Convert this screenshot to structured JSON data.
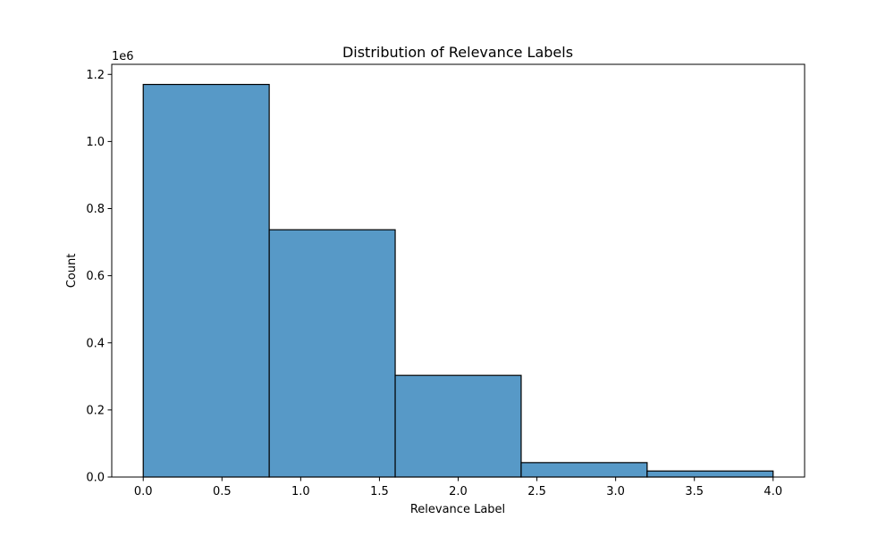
{
  "chart_data": {
    "type": "bar",
    "title": "Distribution of Relevance Labels",
    "xlabel": "Relevance Label",
    "ylabel": "Count",
    "y_multiplier_label": "1e6",
    "bins": [
      {
        "x0": 0.0,
        "x1": 0.8,
        "count": 1170000
      },
      {
        "x0": 0.8,
        "x1": 1.6,
        "count": 737000
      },
      {
        "x0": 1.6,
        "x1": 2.4,
        "count": 303000
      },
      {
        "x0": 2.4,
        "x1": 3.2,
        "count": 43000
      },
      {
        "x0": 3.2,
        "x1": 4.0,
        "count": 18000
      }
    ],
    "xlim": [
      -0.2,
      4.2
    ],
    "ylim": [
      0,
      1230000
    ],
    "x_ticks": [
      0.0,
      0.5,
      1.0,
      1.5,
      2.0,
      2.5,
      3.0,
      3.5,
      4.0
    ],
    "x_tick_labels": [
      "0.0",
      "0.5",
      "1.0",
      "1.5",
      "2.0",
      "2.5",
      "3.0",
      "3.5",
      "4.0"
    ],
    "y_ticks": [
      0,
      200000,
      400000,
      600000,
      800000,
      1000000,
      1200000
    ],
    "y_tick_labels": [
      "0.0",
      "0.2",
      "0.4",
      "0.6",
      "0.8",
      "1.0",
      "1.2"
    ],
    "grid": false,
    "legend": "none",
    "colors": {
      "bar_fill": "#5799c7",
      "bar_edge": "#000000",
      "axis": "#000000",
      "background": "#ffffff"
    }
  }
}
